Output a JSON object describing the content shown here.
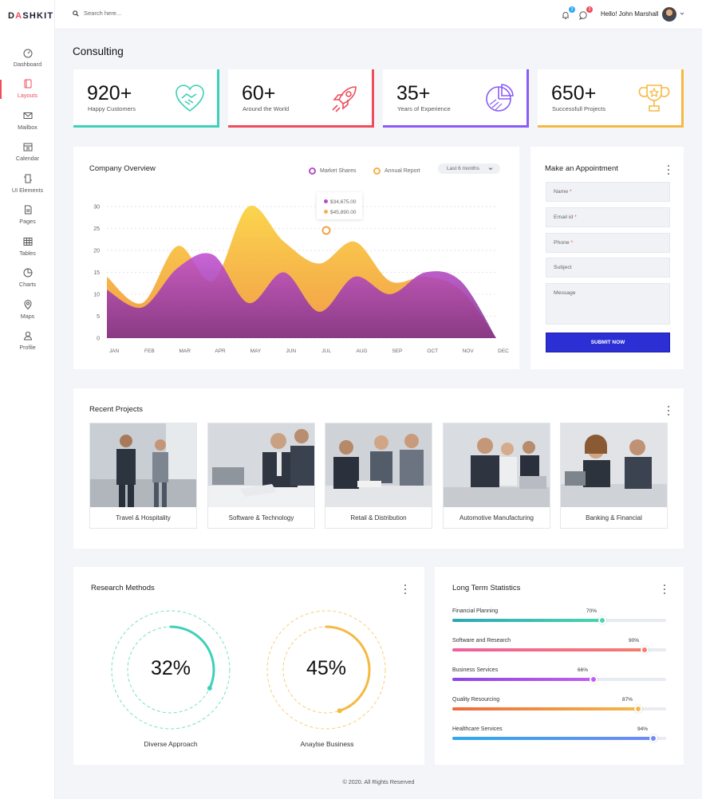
{
  "brand": {
    "logo_prefix": "D",
    "logo_accent": "A",
    "logo_suffix": "SHKIT"
  },
  "sidebar": {
    "items": [
      {
        "label": "Dashboard",
        "icon": "dashboard-icon"
      },
      {
        "label": "Layouts",
        "icon": "layouts-icon",
        "active": true
      },
      {
        "label": "Mailbox",
        "icon": "mailbox-icon"
      },
      {
        "label": "Calendar",
        "icon": "calendar-icon"
      },
      {
        "label": "UI Elements",
        "icon": "ui-elements-icon"
      },
      {
        "label": "Pages",
        "icon": "pages-icon"
      },
      {
        "label": "Tables",
        "icon": "tables-icon"
      },
      {
        "label": "Charts",
        "icon": "charts-icon"
      },
      {
        "label": "Maps",
        "icon": "maps-icon"
      },
      {
        "label": "Profile",
        "icon": "profile-icon"
      }
    ]
  },
  "topbar": {
    "search_placeholder": "Search here...",
    "notif_count": "3",
    "alerts_count": "3",
    "greeting": "Hello! John Marshall"
  },
  "page_title": "Consulting",
  "stats": [
    {
      "value": "920+",
      "label": "Happy Customers",
      "color": "#3ed0b8",
      "icon": "handshake-heart-icon"
    },
    {
      "value": "60+",
      "label": "Around the World",
      "color": "#ef4c5c",
      "icon": "rocket-icon"
    },
    {
      "value": "35+",
      "label": "Years of Experience",
      "color": "#8a5cf6",
      "icon": "pie-chart-icon"
    },
    {
      "value": "650+",
      "label": "Successfull Projects",
      "color": "#f5b942",
      "icon": "trophy-icon"
    }
  ],
  "overview": {
    "title": "Company Overview",
    "legend": [
      {
        "name": "Market Shares",
        "color": "#b44fc9"
      },
      {
        "name": "Annual Report",
        "color": "#f5b049"
      }
    ],
    "range_label": "Last 6 months",
    "tooltip": {
      "a": "$34,675.00",
      "b": "$45,890.00"
    }
  },
  "chart_data": {
    "type": "area",
    "categories": [
      "JAN",
      "FEB",
      "MAR",
      "APR",
      "MAY",
      "JUN",
      "JUL",
      "AUG",
      "SEP",
      "OCT",
      "NOV",
      "DEC"
    ],
    "ylim": [
      0,
      30
    ],
    "yticks": [
      0,
      5,
      10,
      15,
      20,
      25,
      30
    ],
    "series": [
      {
        "name": "Annual Report",
        "values": [
          14,
          8,
          21,
          13,
          30,
          22,
          17,
          22,
          13,
          14,
          11,
          0
        ]
      },
      {
        "name": "Market Shares",
        "values": [
          11,
          7,
          16,
          19,
          8,
          15,
          6,
          14,
          10,
          15,
          13,
          0
        ]
      }
    ]
  },
  "appointment": {
    "title": "Make an Appointment",
    "fields": [
      {
        "label": "Name",
        "required": true
      },
      {
        "label": "Email id",
        "required": true
      },
      {
        "label": "Phone",
        "required": true
      },
      {
        "label": "Subject",
        "required": false
      },
      {
        "label": "Message",
        "required": false
      }
    ],
    "submit_label": "SUBMIT NOW"
  },
  "projects": {
    "title": "Recent Projects",
    "items": [
      {
        "caption": "Travel & Hospitality"
      },
      {
        "caption": "Software & Technology"
      },
      {
        "caption": "Retail & Distribution"
      },
      {
        "caption": "Automotive Manufacturing"
      },
      {
        "caption": "Banking & Financial"
      }
    ]
  },
  "research": {
    "title": "Research Methods",
    "items": [
      {
        "percent": "32%",
        "value": 0.32,
        "label": "Diverse Approach",
        "color": "#3ed0b8"
      },
      {
        "percent": "45%",
        "value": 0.45,
        "label": "Anaylse Business",
        "color": "#f5b942"
      }
    ]
  },
  "long_term": {
    "title": "Long Term Statistics",
    "items": [
      {
        "name": "Financial Planning",
        "percent": "70%",
        "value": 0.7,
        "from": "#2ea6b5",
        "to": "#48d6b0"
      },
      {
        "name": "Software and Research",
        "percent": "90%",
        "value": 0.9,
        "from": "#f05fa0",
        "to": "#f47d6c"
      },
      {
        "name": "Business Services",
        "percent": "66%",
        "value": 0.66,
        "from": "#8c45e6",
        "to": "#c35ef0"
      },
      {
        "name": "Quality Resourcing",
        "percent": "87%",
        "value": 0.87,
        "from": "#ee6a3d",
        "to": "#f5b84a"
      },
      {
        "name": "Healthcare Services",
        "percent": "94%",
        "value": 0.94,
        "from": "#2fa8f0",
        "to": "#6f8af6"
      }
    ]
  },
  "footer": "© 2020. All Rights Reserved"
}
